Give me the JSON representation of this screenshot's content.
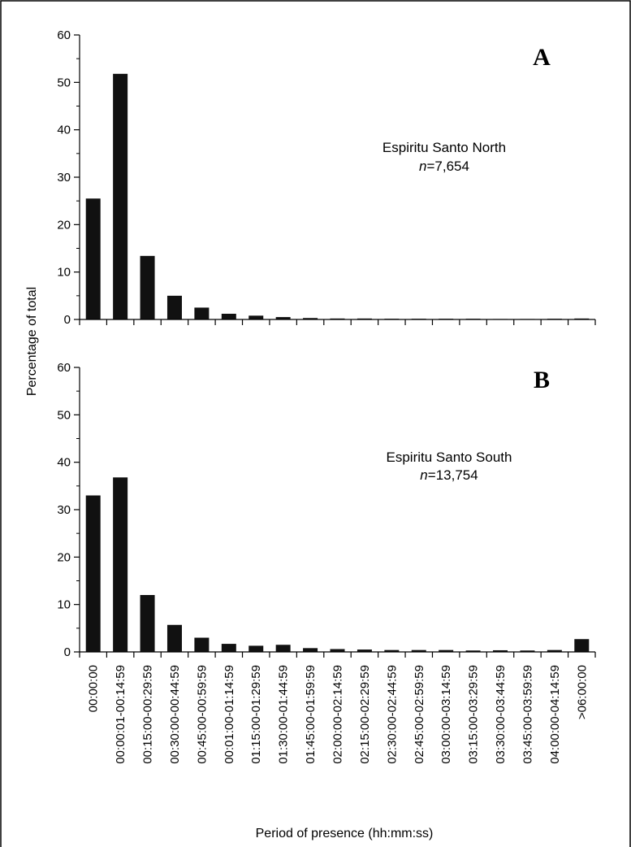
{
  "chart_data": {
    "type": "bar",
    "ylabel": "Percentage of total",
    "xlabel": "Period of presence (hh:mm:ss)",
    "ylim": [
      0,
      60
    ],
    "yticks": [
      0,
      10,
      20,
      30,
      40,
      50,
      60
    ],
    "categories": [
      "00:00:00",
      "00:00:01-00:14:59",
      "00:15:00-00:29:59",
      "00:30:00-00:44:59",
      "00:45:00-00:59:59",
      "00:01:00-01:14:59",
      "01:15:00-01:29:59",
      "01:30:00-01:44:59",
      "01:45:00-01:59:59",
      "02:00:00-02:14:59",
      "02:15:00-02:29:59",
      "02:30:00-02:44:59",
      "02:45:00-02:59:59",
      "03:00:00-03:14:59",
      "03:15:00-03:29:59",
      "03:30:00-03:44:59",
      "03:45:00-03:59:59",
      "04:00:00-04:14:59",
      ">06:00:00"
    ],
    "panels": [
      {
        "letter": "A",
        "series_name": "Espiritu Santo North",
        "n_prefix": "n",
        "n_value": "=7,654",
        "values": [
          25.5,
          51.8,
          13.4,
          5.0,
          2.5,
          1.2,
          0.8,
          0.5,
          0.3,
          0.2,
          0.2,
          0.15,
          0.15,
          0.15,
          0.15,
          0.1,
          0.1,
          0.15,
          0.2
        ]
      },
      {
        "letter": "B",
        "series_name": "Espiritu Santo South",
        "n_prefix": "n",
        "n_value": "=13,754",
        "values": [
          33.0,
          36.8,
          12.0,
          5.7,
          3.0,
          1.7,
          1.3,
          1.5,
          0.8,
          0.6,
          0.5,
          0.4,
          0.4,
          0.4,
          0.3,
          0.35,
          0.3,
          0.4,
          2.7
        ]
      }
    ]
  }
}
